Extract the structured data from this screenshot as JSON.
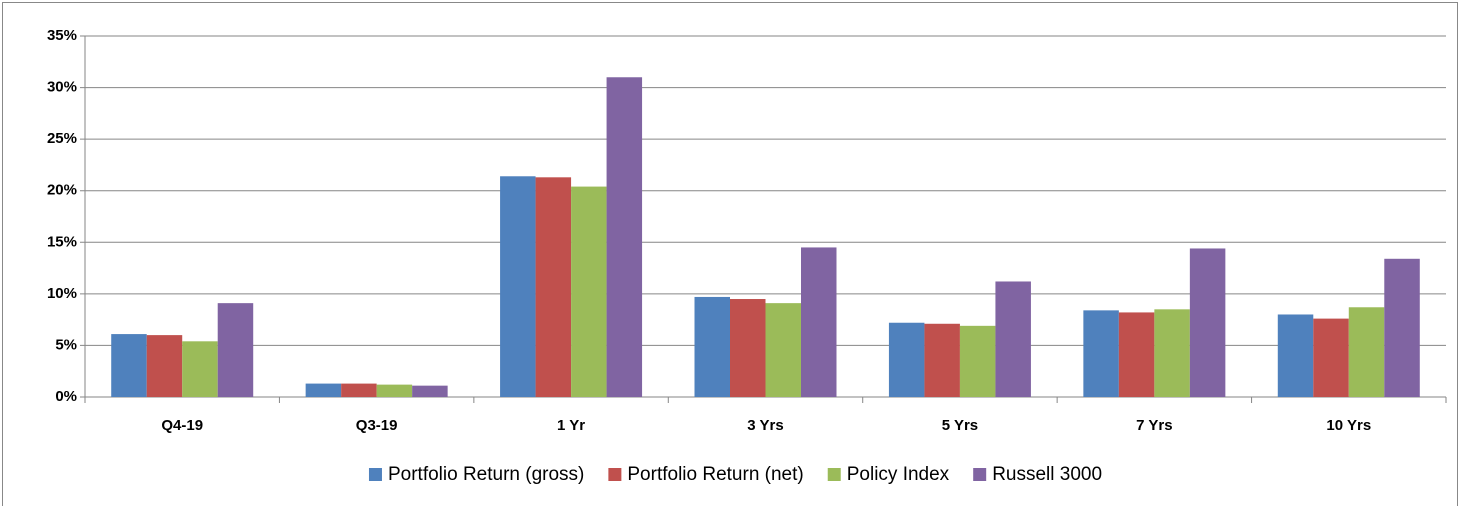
{
  "chart_data": {
    "type": "bar",
    "categories": [
      "Q4-19",
      "Q3-19",
      "1 Yr",
      "3 Yrs",
      "5 Yrs",
      "7 Yrs",
      "10 Yrs"
    ],
    "series": [
      {
        "name": "Portfolio Return (gross)",
        "color": "#4f81bd",
        "values": [
          6.1,
          1.3,
          21.4,
          9.7,
          7.2,
          8.4,
          8.0
        ]
      },
      {
        "name": "Portfolio Return (net)",
        "color": "#c0504d",
        "values": [
          6.0,
          1.3,
          21.3,
          9.5,
          7.1,
          8.2,
          7.6
        ]
      },
      {
        "name": "Policy Index",
        "color": "#9bbb59",
        "values": [
          5.4,
          1.2,
          20.4,
          9.1,
          6.9,
          8.5,
          8.7
        ]
      },
      {
        "name": "Russell 3000",
        "color": "#8064a2",
        "values": [
          9.1,
          1.1,
          31.0,
          14.5,
          11.2,
          14.4,
          13.4
        ]
      }
    ],
    "ylim": [
      0,
      35
    ],
    "yticks": [
      {
        "value": 0,
        "label": "0%"
      },
      {
        "value": 5,
        "label": "5%"
      },
      {
        "value": 10,
        "label": "10%"
      },
      {
        "value": 15,
        "label": "15%"
      },
      {
        "value": 20,
        "label": "20%"
      },
      {
        "value": 25,
        "label": "25%"
      },
      {
        "value": 30,
        "label": "30%"
      },
      {
        "value": 35,
        "label": "35%"
      }
    ],
    "grid": true,
    "legend": "bottom"
  }
}
